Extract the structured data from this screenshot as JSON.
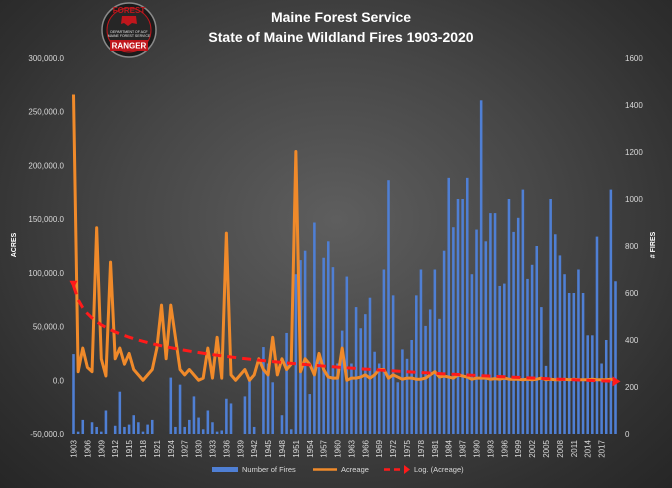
{
  "badge": {
    "top_text": "FOREST",
    "line1": "DEPARTMENT OF ACF",
    "line2": "MAINE FOREST SERVICE",
    "bottom_text": "RANGER"
  },
  "colors": {
    "bars": "#4f7fd4",
    "acreage": "#f08a2a",
    "trend": "#ff1a1a",
    "badge_red": "#c0161c"
  },
  "chart_data": {
    "type": "bar+line",
    "title": "Maine Forest Service",
    "subtitle": "State of Maine  Wildland  Fires 1903-2020",
    "ylabel": "ACRES",
    "y2label": "# FIRES",
    "ylim": [
      -50000,
      300000
    ],
    "y2lim": [
      0,
      1600
    ],
    "y_ticks": [
      "-50,000.0",
      "0.0",
      "50,000.0",
      "100,000.0",
      "150,000.0",
      "200,000.0",
      "250,000.0",
      "300,000.0"
    ],
    "y2_ticks": [
      "0",
      "200",
      "400",
      "600",
      "800",
      "1000",
      "1200",
      "1400",
      "1600"
    ],
    "x_tick_labels": [
      "1903",
      "1906",
      "1909",
      "1912",
      "1915",
      "1918",
      "1921",
      "1924",
      "1927",
      "1930",
      "1933",
      "1936",
      "1939",
      "1942",
      "1945",
      "1948",
      "1951",
      "1954",
      "1957",
      "1960",
      "1963",
      "1966",
      "1969",
      "1972",
      "1975",
      "1978",
      "1981",
      "1984",
      "1987",
      "1990",
      "1993",
      "1996",
      "1999",
      "2002",
      "2005",
      "2008",
      "2011",
      "2014",
      "2017"
    ],
    "grid": false,
    "legend_position": "bottom",
    "years": [
      1903,
      2020
    ],
    "series": [
      {
        "name": "Number of Fires",
        "type": "bar",
        "axis": "y2",
        "values": [
          340,
          10,
          60,
          0,
          50,
          30,
          10,
          100,
          0,
          35,
          180,
          30,
          40,
          80,
          50,
          10,
          40,
          60,
          0,
          0,
          0,
          240,
          30,
          210,
          30,
          60,
          160,
          70,
          20,
          100,
          50,
          10,
          15,
          150,
          130,
          0,
          0,
          160,
          230,
          30,
          0,
          370,
          300,
          220,
          0,
          80,
          430,
          20,
          680,
          740,
          780,
          170,
          900,
          330,
          750,
          820,
          710,
          300,
          440,
          670,
          300,
          540,
          450,
          510,
          580,
          350,
          300,
          700,
          1080,
          590,
          220,
          360,
          320,
          400,
          590,
          700,
          460,
          530,
          700,
          490,
          780,
          1090,
          880,
          1000,
          1000,
          1090,
          680,
          870,
          1420,
          820,
          940,
          940,
          630,
          640,
          1000,
          860,
          920,
          1040,
          660,
          720,
          800,
          540,
          290,
          1000,
          850,
          760,
          680,
          600,
          600,
          700,
          600,
          420,
          420,
          840,
          300,
          400,
          1040,
          650
        ]
      },
      {
        "name": "Acreage",
        "type": "line",
        "axis": "y",
        "values": [
          266000,
          8000,
          30000,
          12000,
          8000,
          142000,
          20000,
          4000,
          110000,
          20000,
          30000,
          15000,
          25000,
          10000,
          5000,
          0,
          5000,
          10000,
          30000,
          70000,
          20000,
          70000,
          40000,
          10000,
          5000,
          10000,
          5000,
          0,
          2000,
          30000,
          2000,
          40000,
          2000,
          137000,
          5000,
          0,
          5000,
          10000,
          0,
          5000,
          20000,
          10000,
          5000,
          40000,
          5000,
          20000,
          10000,
          15000,
          213000,
          8000,
          20000,
          15000,
          5000,
          25000,
          10000,
          3000,
          2000,
          2000,
          30000,
          0,
          2000,
          2000,
          3000,
          5000,
          2000,
          5000,
          10000,
          10000,
          2000,
          5000,
          3000,
          1000,
          2000,
          2000,
          1000,
          1000,
          2000,
          5000,
          8000,
          3000,
          4000,
          3000,
          2000,
          5000,
          4000,
          3000,
          1000,
          2000,
          2000,
          2000,
          1000,
          1500,
          1000,
          2000,
          1000,
          1000,
          1000,
          500,
          1000,
          500,
          1000,
          2000,
          500,
          1000,
          500,
          500,
          1000,
          500,
          1000,
          500,
          500,
          500,
          1000,
          500,
          500,
          500,
          1000,
          500
        ]
      },
      {
        "name": "Log. (Acreage)",
        "type": "trend-log",
        "axis": "y",
        "endpoints": [
          {
            "x": 1903,
            "y": 88000
          },
          {
            "x": 2020,
            "y": -1000
          }
        ]
      }
    ]
  }
}
